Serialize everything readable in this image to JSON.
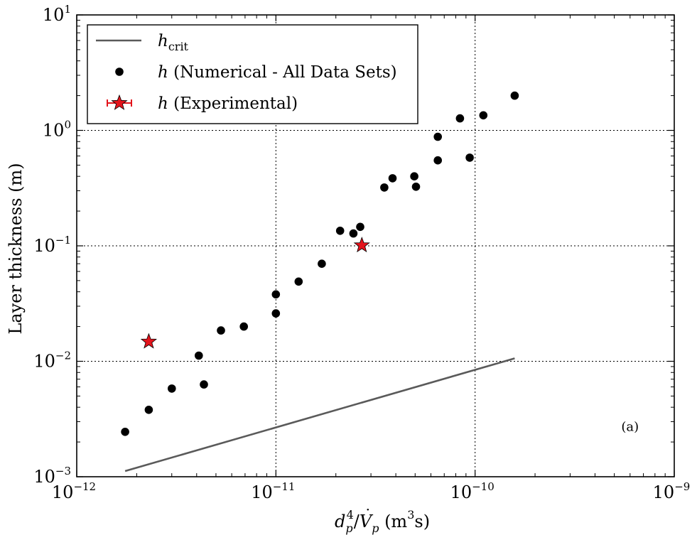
{
  "chart_data": {
    "type": "scatter",
    "xlabel": "d_p^4/V̇_p (m^3 s)",
    "xlabel_parts": {
      "base": "d",
      "sub": "p",
      "sup": "4",
      "slash": "/",
      "vdot": "V",
      "vsub": "p",
      "units_open": " (m",
      "units_sup": "3",
      "units_close": "s)"
    },
    "ylabel": "Layer thickness (m)",
    "xscale": "log",
    "yscale": "log",
    "xlim": [
      1e-12,
      1e-09
    ],
    "ylim": [
      0.001,
      10
    ],
    "grid": true,
    "legend_position": "top-left",
    "x_ticks": [
      {
        "value": 1e-12,
        "base": "10",
        "exp": "−12"
      },
      {
        "value": 1e-11,
        "base": "10",
        "exp": "−11"
      },
      {
        "value": 1e-10,
        "base": "10",
        "exp": "−10"
      },
      {
        "value": 1e-09,
        "base": "10",
        "exp": "−9"
      }
    ],
    "y_ticks": [
      {
        "value": 0.001,
        "base": "10",
        "exp": "−3"
      },
      {
        "value": 0.01,
        "base": "10",
        "exp": "−2"
      },
      {
        "value": 0.1,
        "base": "10",
        "exp": "−1"
      },
      {
        "value": 1,
        "base": "10",
        "exp": "0"
      },
      {
        "value": 10,
        "base": "10",
        "exp": "1"
      }
    ],
    "annotation": {
      "text": "(a)",
      "x": 6e-10,
      "y": 0.0025
    },
    "series": [
      {
        "name": "h_crit",
        "legend_main": "h",
        "legend_sub": "crit",
        "kind": "line",
        "color": "#5a5a5a",
        "points": [
          [
            1.75e-12,
            0.00112
          ],
          [
            1.58e-10,
            0.0106
          ]
        ]
      },
      {
        "name": "h (Numerical - All Data Sets)",
        "legend_main": "h",
        "legend_rest": " (Numerical - All Data Sets)",
        "kind": "marker-circle",
        "color": "#000000",
        "points": [
          [
            1.75e-12,
            0.00245
          ],
          [
            2.3e-12,
            0.0038
          ],
          [
            3e-12,
            0.0058
          ],
          [
            4.1e-12,
            0.0112
          ],
          [
            4.35e-12,
            0.0063
          ],
          [
            5.3e-12,
            0.0185
          ],
          [
            6.9e-12,
            0.02
          ],
          [
            1e-11,
            0.038
          ],
          [
            1e-11,
            0.026
          ],
          [
            1.3e-11,
            0.049
          ],
          [
            1.7e-11,
            0.07
          ],
          [
            2.1e-11,
            0.135
          ],
          [
            2.45e-11,
            0.128
          ],
          [
            2.65e-11,
            0.146
          ],
          [
            3.5e-11,
            0.32
          ],
          [
            3.85e-11,
            0.385
          ],
          [
            4.95e-11,
            0.4
          ],
          [
            5.05e-11,
            0.325
          ],
          [
            6.5e-11,
            0.88
          ],
          [
            6.5e-11,
            0.55
          ],
          [
            8.4e-11,
            1.27
          ],
          [
            9.4e-11,
            0.58
          ],
          [
            1.1e-10,
            1.35
          ],
          [
            1.58e-10,
            2.0
          ]
        ]
      },
      {
        "name": "h (Experimental)",
        "legend_main": "h",
        "legend_rest": " (Experimental)",
        "kind": "marker-star",
        "color": "#e3141c",
        "points": [
          [
            2.3e-12,
            0.0148
          ],
          [
            2.7e-11,
            0.101
          ]
        ]
      }
    ]
  }
}
